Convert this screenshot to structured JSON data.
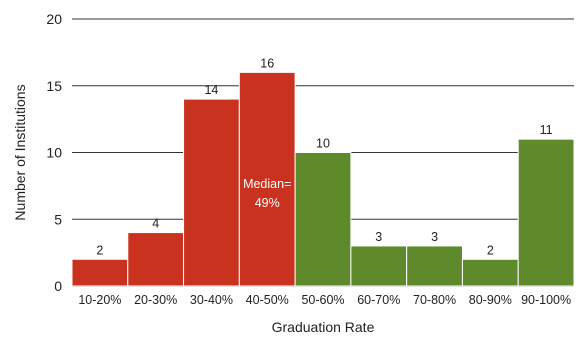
{
  "chart_data": {
    "type": "bar",
    "categories": [
      "10-20%",
      "20-30%",
      "30-40%",
      "40-50%",
      "50-60%",
      "60-70%",
      "70-80%",
      "80-90%",
      "90-100%"
    ],
    "values": [
      2,
      4,
      14,
      16,
      10,
      3,
      3,
      2,
      11
    ],
    "bar_colors": [
      "#c8321e",
      "#c8321e",
      "#c8321e",
      "#c8321e",
      "#5e8a2c",
      "#5e8a2c",
      "#5e8a2c",
      "#5e8a2c",
      "#5e8a2c"
    ],
    "title": "",
    "xlabel": "Graduation Rate",
    "ylabel": "Number of Institutions",
    "ylim": [
      0,
      20
    ],
    "yticks": [
      0,
      5,
      10,
      15,
      20
    ],
    "grid": "horizontal lines at major ticks",
    "annotation": {
      "line1": "Median=",
      "line2": "49%",
      "category": "40-50%"
    }
  }
}
